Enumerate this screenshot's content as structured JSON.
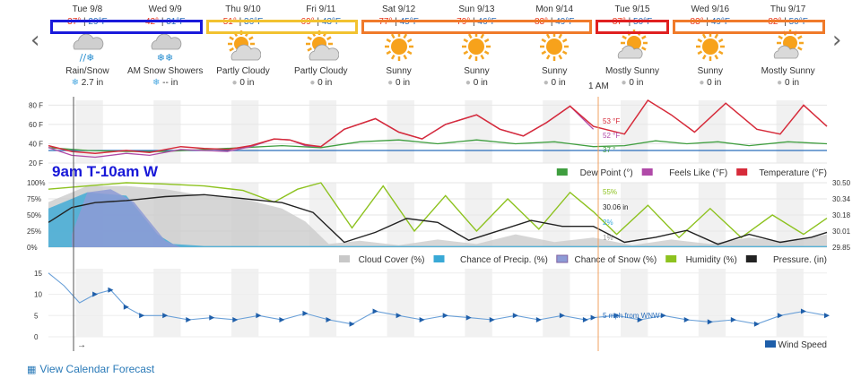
{
  "nav": {
    "prev_glyph": "‹",
    "next_glyph": "›"
  },
  "days": [
    {
      "date": "Tue 9/8",
      "hi": "37°",
      "lo": "29°F",
      "icon": "rain-snow-icon",
      "condition": "Rain/Snow",
      "precip": "2.7 in",
      "precip_icon": "snowflake"
    },
    {
      "date": "Wed 9/9",
      "hi": "42°",
      "lo": "31°F",
      "icon": "snow-showers-icon",
      "condition": "AM Snow Showers",
      "precip": "-- in",
      "precip_icon": "snowflake"
    },
    {
      "date": "Thu 9/10",
      "hi": "51°",
      "lo": "36°F",
      "icon": "partly-cloudy-icon",
      "condition": "Partly Cloudy",
      "precip": "0 in",
      "precip_icon": "drop"
    },
    {
      "date": "Fri 9/11",
      "hi": "69°",
      "lo": "43°F",
      "icon": "partly-cloudy-icon",
      "condition": "Partly Cloudy",
      "precip": "0 in",
      "precip_icon": "drop"
    },
    {
      "date": "Sat 9/12",
      "hi": "77°",
      "lo": "45°F",
      "icon": "sunny-icon",
      "condition": "Sunny",
      "precip": "0 in",
      "precip_icon": "drop"
    },
    {
      "date": "Sun 9/13",
      "hi": "79°",
      "lo": "46°F",
      "icon": "sunny-icon",
      "condition": "Sunny",
      "precip": "0 in",
      "precip_icon": "drop"
    },
    {
      "date": "Mon 9/14",
      "hi": "83°",
      "lo": "49°F",
      "icon": "sunny-icon",
      "condition": "Sunny",
      "precip": "0 in",
      "precip_icon": "drop"
    },
    {
      "date": "Tue 9/15",
      "hi": "87°",
      "lo": "50°F",
      "icon": "mostly-sunny-icon",
      "condition": "Mostly Sunny",
      "precip": "0 in",
      "precip_icon": "drop"
    },
    {
      "date": "Wed 9/16",
      "hi": "83°",
      "lo": "49°F",
      "icon": "sunny-icon",
      "condition": "Sunny",
      "precip": "0 in",
      "precip_icon": "drop"
    },
    {
      "date": "Thu 9/17",
      "hi": "82°",
      "lo": "50°F",
      "icon": "mostly-sunny-icon",
      "condition": "Mostly Sunny",
      "precip": "0 in",
      "precip_icon": "drop"
    }
  ],
  "highlight_boxes": [
    {
      "days": [
        0,
        1
      ],
      "color": "#1a1adb"
    },
    {
      "days": [
        2,
        3
      ],
      "color": "#f2c230"
    },
    {
      "days": [
        4,
        6
      ],
      "color": "#f07a2a"
    },
    {
      "days": [
        7,
        7
      ],
      "color": "#e02020"
    },
    {
      "days": [
        8,
        9
      ],
      "color": "#f07a2a"
    }
  ],
  "hover_time_label": "1 AM",
  "overlay_caption": "9am T-10am W",
  "calendar_link": "View Calendar Forecast",
  "colors": {
    "temperature": "#d62b3a",
    "feels_like": "#b04aa8",
    "dew_point": "#3f9e3f",
    "cloud_cover": "#c8c8c8",
    "precip_chance": "#39a9d6",
    "snow_chance": "#8d9bd6",
    "humidity": "#8dc21f",
    "pressure": "#222222",
    "wind": "#1f5faa",
    "caption": "#1818d8",
    "hover_line": "#f0a060"
  },
  "chart_data": [
    {
      "type": "line",
      "x_unit": "days from start",
      "yticks": [
        "80 F",
        "60 F",
        "40 F",
        "20 F"
      ],
      "ylim": [
        20,
        85
      ],
      "legend": [
        "Dew Point (°)",
        "Feels Like (°F)",
        "Temperature (°F)"
      ],
      "series": [
        {
          "name": "Temperature (°F)",
          "points": [
            [
              0,
              38
            ],
            [
              0.3,
              32
            ],
            [
              0.6,
              30
            ],
            [
              1.0,
              33
            ],
            [
              1.3,
              31
            ],
            [
              1.7,
              37
            ],
            [
              2.0,
              35
            ],
            [
              2.3,
              34
            ],
            [
              2.6,
              38
            ],
            [
              2.9,
              45
            ],
            [
              3.1,
              44
            ],
            [
              3.3,
              39
            ],
            [
              3.5,
              37
            ],
            [
              3.8,
              55
            ],
            [
              4.2,
              66
            ],
            [
              4.5,
              52
            ],
            [
              4.8,
              45
            ],
            [
              5.1,
              60
            ],
            [
              5.5,
              70
            ],
            [
              5.8,
              55
            ],
            [
              6.1,
              48
            ],
            [
              6.4,
              62
            ],
            [
              6.7,
              79
            ],
            [
              7.0,
              58
            ],
            [
              7.4,
              50
            ],
            [
              7.7,
              85
            ],
            [
              8.0,
              70
            ],
            [
              8.3,
              52
            ],
            [
              8.7,
              82
            ],
            [
              9.1,
              55
            ],
            [
              9.4,
              50
            ],
            [
              9.7,
              80
            ],
            [
              10.0,
              58
            ]
          ]
        },
        {
          "name": "Feels Like (°F)",
          "points": [
            [
              0,
              36
            ],
            [
              0.3,
              28
            ],
            [
              0.6,
              26
            ],
            [
              1.0,
              30
            ],
            [
              1.3,
              28
            ],
            [
              1.7,
              34
            ],
            [
              2.0,
              33
            ],
            [
              2.3,
              32
            ],
            [
              2.6,
              37
            ],
            [
              2.9,
              45
            ],
            [
              3.1,
              44
            ],
            [
              3.3,
              38
            ],
            [
              3.5,
              37
            ],
            [
              3.8,
              55
            ],
            [
              4.2,
              66
            ],
            [
              4.5,
              52
            ],
            [
              4.8,
              45
            ],
            [
              5.1,
              60
            ],
            [
              5.5,
              70
            ],
            [
              5.8,
              55
            ],
            [
              6.1,
              48
            ],
            [
              6.4,
              62
            ],
            [
              6.7,
              79
            ],
            [
              7.0,
              55
            ]
          ]
        },
        {
          "name": "Dew Point (°)",
          "points": [
            [
              0,
              36
            ],
            [
              0.5,
              33
            ],
            [
              1.0,
              32
            ],
            [
              1.5,
              32
            ],
            [
              2.0,
              34
            ],
            [
              2.5,
              36
            ],
            [
              3.0,
              38
            ],
            [
              3.5,
              36
            ],
            [
              4.0,
              42
            ],
            [
              4.5,
              44
            ],
            [
              5.0,
              40
            ],
            [
              5.5,
              44
            ],
            [
              6.0,
              40
            ],
            [
              6.5,
              42
            ],
            [
              7.0,
              37
            ],
            [
              7.4,
              38
            ],
            [
              7.8,
              43
            ],
            [
              8.2,
              40
            ],
            [
              8.6,
              42
            ],
            [
              9.0,
              38
            ],
            [
              9.5,
              42
            ],
            [
              10.0,
              40
            ]
          ]
        }
      ],
      "reference_line": 33,
      "point_labels": [
        "53 °F",
        "52 °F",
        "37 °"
      ]
    },
    {
      "type": "area",
      "yticks_left": [
        "100%",
        "75%",
        "50%",
        "25%",
        "0%"
      ],
      "yticks_right": [
        "30.50",
        "30.34",
        "30.18",
        "30.01",
        "29.85"
      ],
      "legend": [
        "Cloud Cover (%)",
        "Chance of Precip. (%)",
        "Chance of Snow (%)",
        "Humidity (%)",
        "Pressure. (in)"
      ],
      "series": [
        {
          "name": "Cloud Cover (%)",
          "points": [
            [
              0,
              70
            ],
            [
              0.5,
              95
            ],
            [
              1.0,
              95
            ],
            [
              1.5,
              90
            ],
            [
              2.0,
              80
            ],
            [
              2.5,
              75
            ],
            [
              3.0,
              60
            ],
            [
              3.3,
              40
            ],
            [
              3.6,
              5
            ],
            [
              4.0,
              10
            ],
            [
              4.5,
              3
            ],
            [
              5.0,
              12
            ],
            [
              5.5,
              5
            ],
            [
              6.0,
              20
            ],
            [
              6.5,
              8
            ],
            [
              7.0,
              15
            ],
            [
              7.5,
              3
            ],
            [
              8.0,
              12
            ],
            [
              8.5,
              5
            ],
            [
              9.0,
              15
            ],
            [
              9.5,
              8
            ],
            [
              10.0,
              20
            ]
          ]
        },
        {
          "name": "Chance of Precip. (%)",
          "points": [
            [
              0,
              60
            ],
            [
              0.5,
              85
            ],
            [
              1.0,
              80
            ],
            [
              1.2,
              50
            ],
            [
              1.4,
              20
            ],
            [
              1.6,
              5
            ],
            [
              2.0,
              2
            ],
            [
              3.0,
              2
            ],
            [
              10.0,
              2
            ]
          ]
        },
        {
          "name": "Chance of Snow (%)",
          "points": [
            [
              0.3,
              20
            ],
            [
              0.5,
              85
            ],
            [
              0.8,
              90
            ],
            [
              1.1,
              70
            ],
            [
              1.3,
              40
            ],
            [
              1.5,
              10
            ],
            [
              1.7,
              0
            ]
          ]
        },
        {
          "name": "Humidity (%)",
          "points": [
            [
              0,
              90
            ],
            [
              0.5,
              95
            ],
            [
              1.0,
              100
            ],
            [
              1.5,
              98
            ],
            [
              2.0,
              95
            ],
            [
              2.5,
              88
            ],
            [
              2.9,
              70
            ],
            [
              3.2,
              90
            ],
            [
              3.5,
              100
            ],
            [
              3.9,
              30
            ],
            [
              4.3,
              95
            ],
            [
              4.7,
              25
            ],
            [
              5.1,
              80
            ],
            [
              5.5,
              25
            ],
            [
              5.9,
              75
            ],
            [
              6.3,
              28
            ],
            [
              6.7,
              85
            ],
            [
              7.0,
              55
            ],
            [
              7.3,
              20
            ],
            [
              7.7,
              65
            ],
            [
              8.1,
              15
            ],
            [
              8.5,
              60
            ],
            [
              8.9,
              15
            ],
            [
              9.3,
              50
            ],
            [
              9.7,
              20
            ],
            [
              10.0,
              45
            ]
          ]
        },
        {
          "name": "Pressure. (in)",
          "points": [
            [
              0,
              30.1
            ],
            [
              0.3,
              30.25
            ],
            [
              0.6,
              30.3
            ],
            [
              1.0,
              30.32
            ],
            [
              1.5,
              30.36
            ],
            [
              2.0,
              30.38
            ],
            [
              2.5,
              30.34
            ],
            [
              3.0,
              30.3
            ],
            [
              3.4,
              30.2
            ],
            [
              3.8,
              29.9
            ],
            [
              4.2,
              30.0
            ],
            [
              4.6,
              30.14
            ],
            [
              5.0,
              30.1
            ],
            [
              5.4,
              29.92
            ],
            [
              5.8,
              30.02
            ],
            [
              6.2,
              30.12
            ],
            [
              6.6,
              30.06
            ],
            [
              7.0,
              30.06
            ],
            [
              7.4,
              29.9
            ],
            [
              7.8,
              29.95
            ],
            [
              8.2,
              30.02
            ],
            [
              8.6,
              29.88
            ],
            [
              9.0,
              29.98
            ],
            [
              9.4,
              29.9
            ],
            [
              9.8,
              29.95
            ],
            [
              10.0,
              30.0
            ]
          ]
        }
      ],
      "point_labels": [
        "55%",
        "30.06 in",
        "2%",
        "1%"
      ]
    },
    {
      "type": "line",
      "yticks": [
        "15",
        "10",
        "5",
        "0"
      ],
      "ylim": [
        0,
        16
      ],
      "legend": [
        "Wind Speed"
      ],
      "series": [
        {
          "name": "Wind Speed",
          "points": [
            [
              0,
              15
            ],
            [
              0.2,
              12
            ],
            [
              0.4,
              8
            ],
            [
              0.6,
              10
            ],
            [
              0.8,
              11
            ],
            [
              1.0,
              7
            ],
            [
              1.2,
              5
            ],
            [
              1.5,
              5
            ],
            [
              1.8,
              4
            ],
            [
              2.1,
              4.5
            ],
            [
              2.4,
              4
            ],
            [
              2.7,
              5
            ],
            [
              3.0,
              4
            ],
            [
              3.3,
              5.5
            ],
            [
              3.6,
              4
            ],
            [
              3.9,
              3
            ],
            [
              4.2,
              6
            ],
            [
              4.5,
              5
            ],
            [
              4.8,
              4
            ],
            [
              5.1,
              5
            ],
            [
              5.4,
              4.5
            ],
            [
              5.7,
              4
            ],
            [
              6.0,
              5
            ],
            [
              6.3,
              4
            ],
            [
              6.6,
              5
            ],
            [
              6.9,
              4
            ],
            [
              7.0,
              4.5
            ],
            [
              7.3,
              5
            ],
            [
              7.6,
              4
            ],
            [
              7.9,
              5
            ],
            [
              8.2,
              4
            ],
            [
              8.5,
              3.5
            ],
            [
              8.8,
              4
            ],
            [
              9.1,
              3
            ],
            [
              9.4,
              5
            ],
            [
              9.7,
              6
            ],
            [
              10.0,
              5
            ]
          ]
        }
      ],
      "point_labels": [
        "5 mph from WNW"
      ],
      "direction_arrow": "→"
    }
  ]
}
